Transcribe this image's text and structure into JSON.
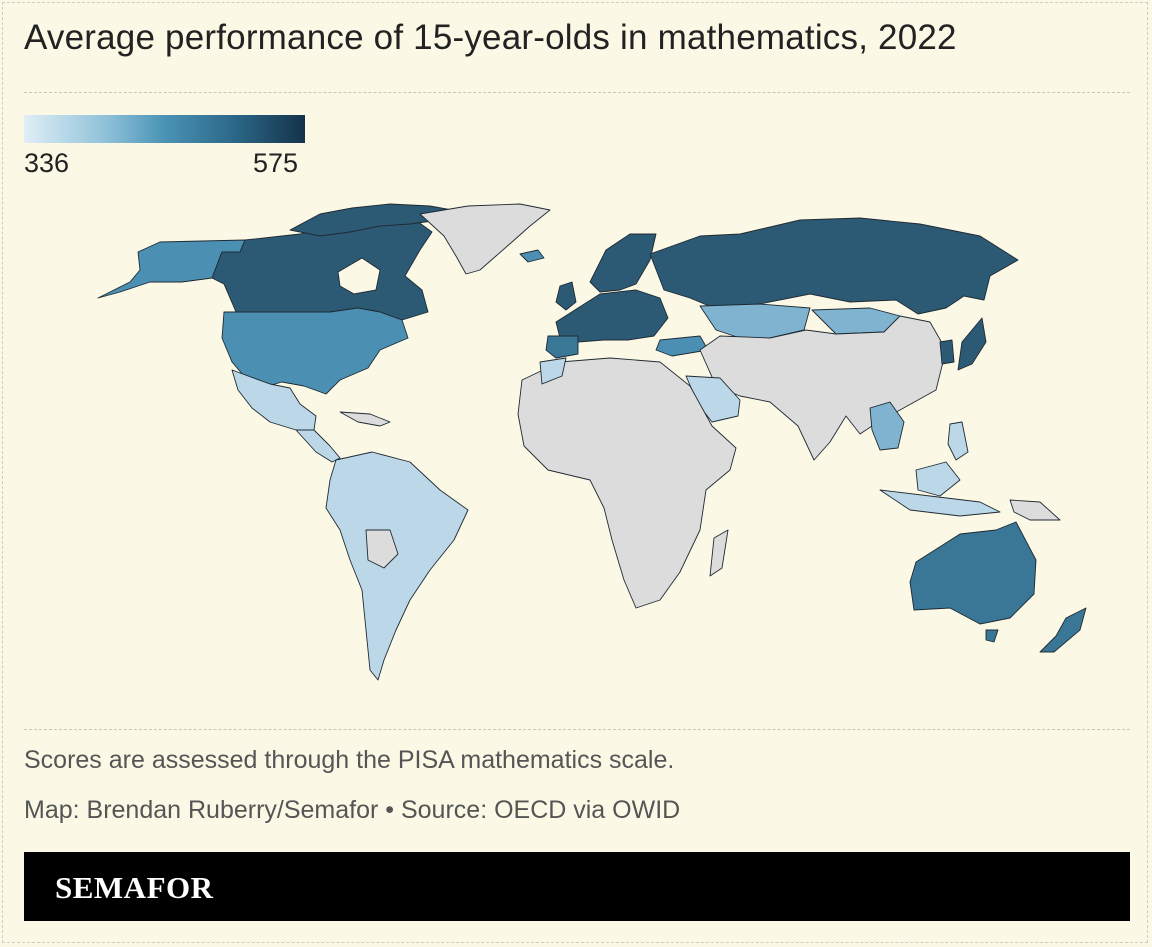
{
  "title": "Average performance of 15-year-olds in mathematics, 2022",
  "legend": {
    "min": "336",
    "max": "575",
    "colors": [
      "#e0eef6",
      "#8cc0d8",
      "#4a93b5",
      "#2c6788",
      "#13334a"
    ]
  },
  "map_colors": {
    "no_data": "#dcdcdc",
    "low": "#bcd8e8",
    "mid_low": "#7fb3cf",
    "mid": "#4b90b3",
    "mid_high": "#3a7696",
    "high": "#2c5a74",
    "highest": "#1e4257"
  },
  "notes": {
    "description": "Scores are assessed through the PISA mathematics scale.",
    "credit": "Map: Brendan Ruberry/Semafor • Source: OECD via OWID"
  },
  "brand": "SEMAFOR"
}
